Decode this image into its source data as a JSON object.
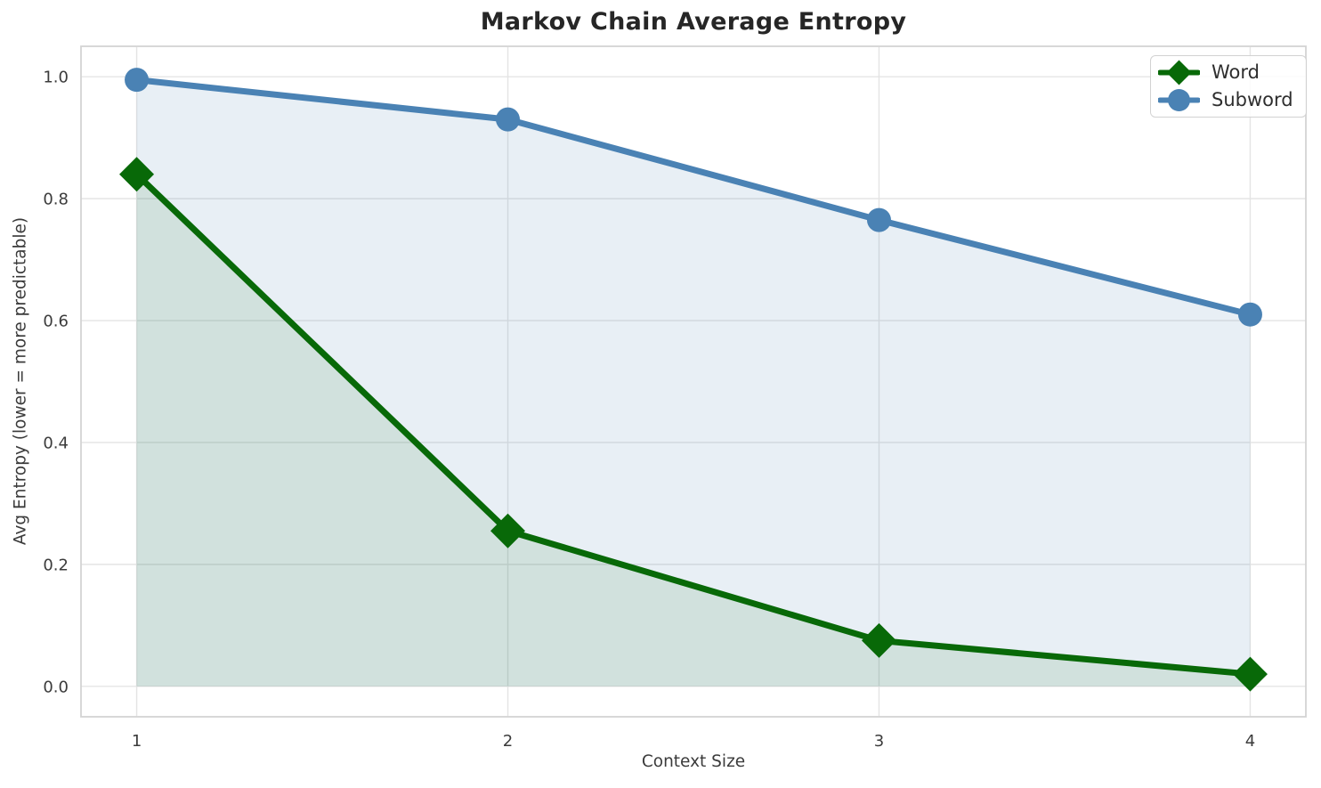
{
  "chart": {
    "title": "Markov Chain Average Entropy",
    "xlabel": "Context Size",
    "ylabel": "Avg Entropy (lower = more predictable)"
  },
  "chart_data": {
    "type": "line",
    "title": "Markov Chain Average Entropy",
    "xlabel": "Context Size",
    "ylabel": "Avg Entropy (lower = more predictable)",
    "x": [
      1,
      2,
      3,
      4
    ],
    "series": [
      {
        "name": "Word",
        "values": [
          0.84,
          0.255,
          0.075,
          0.02
        ],
        "color": "#086908",
        "marker": "diamond",
        "fill": true,
        "fill_alpha": 0.1
      },
      {
        "name": "Subword",
        "values": [
          0.995,
          0.93,
          0.765,
          0.61
        ],
        "color": "#4a82b4",
        "marker": "circle",
        "fill": true,
        "fill_alpha": 0.13
      }
    ],
    "xticks": [
      1,
      2,
      3,
      4
    ],
    "xtick_labels": [
      "1",
      "2",
      "3",
      "4"
    ],
    "yticks": [
      0.0,
      0.2,
      0.4,
      0.6,
      0.8,
      1.0
    ],
    "ytick_labels": [
      "0.0",
      "0.2",
      "0.4",
      "0.6",
      "0.8",
      "1.0"
    ],
    "xlim": [
      0.85,
      4.15
    ],
    "ylim": [
      -0.05,
      1.05
    ],
    "fill_baseline": 0,
    "grid": true,
    "grid_color": "#e4e4e4",
    "spine_color": "#d4d4d4",
    "tick_color": "#3b3b3b",
    "legend_position": "upper right"
  }
}
